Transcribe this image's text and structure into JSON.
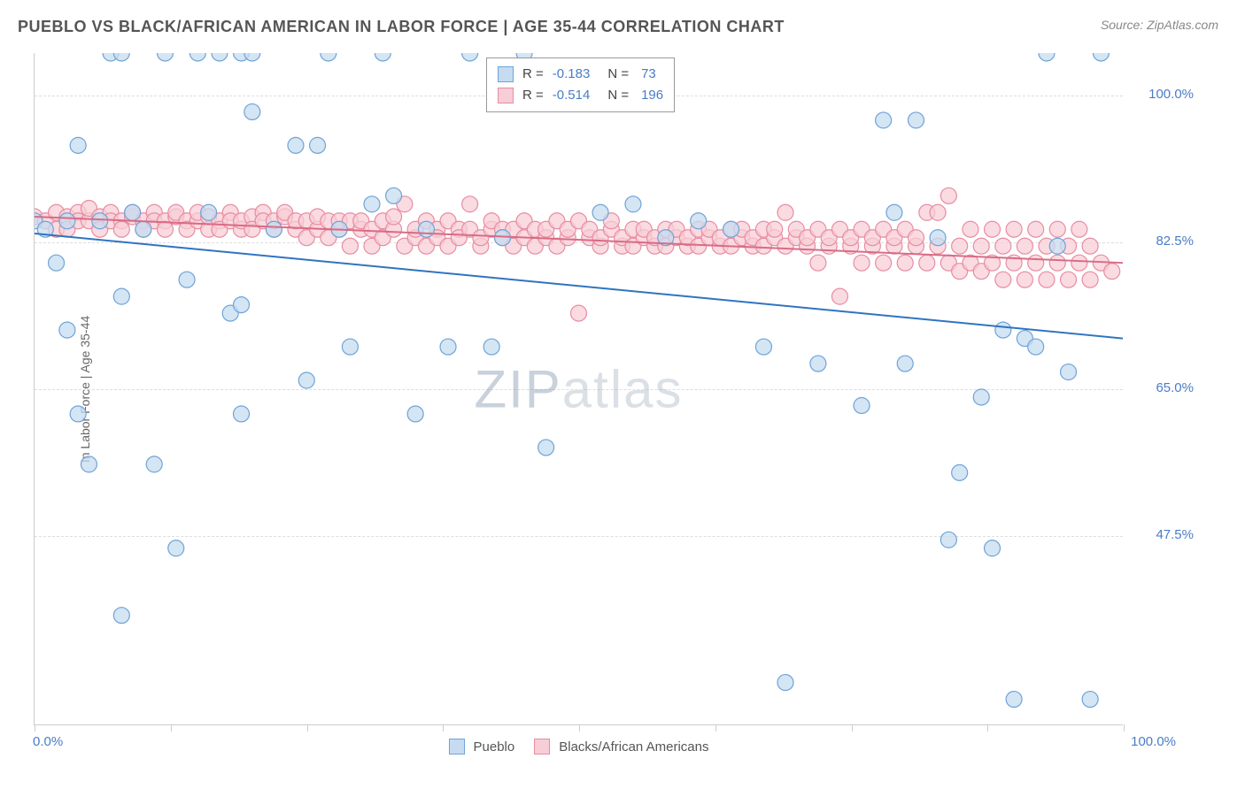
{
  "header": {
    "title": "PUEBLO VS BLACK/AFRICAN AMERICAN IN LABOR FORCE | AGE 35-44 CORRELATION CHART",
    "source": "Source: ZipAtlas.com"
  },
  "chart": {
    "type": "scatter",
    "y_label": "In Labor Force | Age 35-44",
    "xlim": [
      0,
      100
    ],
    "ylim": [
      25,
      105
    ],
    "background_color": "#ffffff",
    "grid_color": "#dddddd",
    "axis_color": "#cccccc",
    "y_ticks": [
      {
        "value": 100.0,
        "label": "100.0%"
      },
      {
        "value": 82.5,
        "label": "82.5%"
      },
      {
        "value": 65.0,
        "label": "65.0%"
      },
      {
        "value": 47.5,
        "label": "47.5%"
      }
    ],
    "x_ticks": [
      0,
      12.5,
      25,
      37.5,
      50,
      62.5,
      75,
      87.5,
      100
    ],
    "x_labels": [
      {
        "value": 0,
        "label": "0.0%"
      },
      {
        "value": 100,
        "label": "100.0%"
      }
    ],
    "label_color": "#4a7cc7",
    "label_fontsize": 15,
    "series": [
      {
        "name": "Pueblo",
        "color": "#6fa3d8",
        "fill": "#c5dcf0",
        "swatch_fill": "#c5dcf0",
        "swatch_border": "#6fa3d8",
        "marker_radius": 9,
        "marker_opacity": 0.75,
        "R": "-0.183",
        "N": "73",
        "regression": {
          "x1": 0,
          "y1": 83.5,
          "x2": 100,
          "y2": 71.0,
          "color": "#2f74c0",
          "width": 2
        },
        "points": [
          [
            0,
            85
          ],
          [
            3,
            85
          ],
          [
            1,
            84
          ],
          [
            2,
            80
          ],
          [
            3,
            72
          ],
          [
            4,
            94
          ],
          [
            4,
            62
          ],
          [
            5,
            56
          ],
          [
            6,
            85
          ],
          [
            7,
            105
          ],
          [
            8,
            105
          ],
          [
            8,
            38
          ],
          [
            8,
            76
          ],
          [
            9,
            86
          ],
          [
            10,
            84
          ],
          [
            11,
            56
          ],
          [
            12,
            105
          ],
          [
            13,
            46
          ],
          [
            14,
            78
          ],
          [
            15,
            105
          ],
          [
            16,
            86
          ],
          [
            17,
            105
          ],
          [
            18,
            74
          ],
          [
            19,
            105
          ],
          [
            19,
            75
          ],
          [
            19,
            62
          ],
          [
            20,
            105
          ],
          [
            20,
            98
          ],
          [
            22,
            84
          ],
          [
            24,
            94
          ],
          [
            25,
            66
          ],
          [
            26,
            94
          ],
          [
            27,
            105
          ],
          [
            28,
            84
          ],
          [
            29,
            70
          ],
          [
            31,
            87
          ],
          [
            32,
            105
          ],
          [
            33,
            88
          ],
          [
            35,
            62
          ],
          [
            36,
            84
          ],
          [
            38,
            70
          ],
          [
            40,
            105
          ],
          [
            42,
            70
          ],
          [
            43,
            83
          ],
          [
            45,
            105
          ],
          [
            47,
            58
          ],
          [
            52,
            86
          ],
          [
            55,
            87
          ],
          [
            58,
            83
          ],
          [
            61,
            85
          ],
          [
            64,
            84
          ],
          [
            67,
            70
          ],
          [
            69,
            30
          ],
          [
            72,
            68
          ],
          [
            76,
            63
          ],
          [
            78,
            97
          ],
          [
            79,
            86
          ],
          [
            80,
            68
          ],
          [
            81,
            97
          ],
          [
            83,
            83
          ],
          [
            84,
            47
          ],
          [
            85,
            55
          ],
          [
            87,
            64
          ],
          [
            88,
            46
          ],
          [
            89,
            72
          ],
          [
            90,
            28
          ],
          [
            91,
            71
          ],
          [
            92,
            70
          ],
          [
            93,
            105
          ],
          [
            94,
            82
          ],
          [
            95,
            67
          ],
          [
            97,
            28
          ],
          [
            98,
            105
          ]
        ]
      },
      {
        "name": "Blacks/African Americans",
        "color": "#e88ca0",
        "fill": "#f7cdd6",
        "swatch_fill": "#f7cdd6",
        "swatch_border": "#e88ca0",
        "marker_radius": 9,
        "marker_opacity": 0.72,
        "R": "-0.514",
        "N": "196",
        "regression": {
          "x1": 0,
          "y1": 85.5,
          "x2": 100,
          "y2": 80.0,
          "color": "#d96b84",
          "width": 2
        },
        "points": [
          [
            0,
            85.5
          ],
          [
            1,
            85
          ],
          [
            2,
            86
          ],
          [
            2,
            84
          ],
          [
            3,
            85.5
          ],
          [
            3,
            84
          ],
          [
            4,
            86
          ],
          [
            4,
            85
          ],
          [
            5,
            85
          ],
          [
            5,
            86.5
          ],
          [
            6,
            85.5
          ],
          [
            6,
            84
          ],
          [
            7,
            86
          ],
          [
            7,
            85
          ],
          [
            8,
            85
          ],
          [
            8,
            84
          ],
          [
            9,
            85.5
          ],
          [
            9,
            86
          ],
          [
            10,
            85
          ],
          [
            10,
            84
          ],
          [
            11,
            86
          ],
          [
            11,
            85
          ],
          [
            12,
            85
          ],
          [
            12,
            84
          ],
          [
            13,
            85.5
          ],
          [
            13,
            86
          ],
          [
            14,
            85
          ],
          [
            14,
            84
          ],
          [
            15,
            85
          ],
          [
            15,
            86
          ],
          [
            16,
            84
          ],
          [
            16,
            85.5
          ],
          [
            17,
            85
          ],
          [
            17,
            84
          ],
          [
            18,
            86
          ],
          [
            18,
            85
          ],
          [
            19,
            84
          ],
          [
            19,
            85
          ],
          [
            20,
            85.5
          ],
          [
            20,
            84
          ],
          [
            21,
            86
          ],
          [
            21,
            85
          ],
          [
            22,
            84
          ],
          [
            22,
            85
          ],
          [
            23,
            85.5
          ],
          [
            23,
            86
          ],
          [
            24,
            84
          ],
          [
            24,
            85
          ],
          [
            25,
            85
          ],
          [
            25,
            83
          ],
          [
            26,
            84
          ],
          [
            26,
            85.5
          ],
          [
            27,
            85
          ],
          [
            27,
            83
          ],
          [
            28,
            84
          ],
          [
            28,
            85
          ],
          [
            29,
            85
          ],
          [
            29,
            82
          ],
          [
            30,
            84
          ],
          [
            30,
            85
          ],
          [
            31,
            82
          ],
          [
            31,
            84
          ],
          [
            32,
            85
          ],
          [
            32,
            83
          ],
          [
            33,
            84
          ],
          [
            33,
            85.5
          ],
          [
            34,
            87
          ],
          [
            34,
            82
          ],
          [
            35,
            83
          ],
          [
            35,
            84
          ],
          [
            36,
            85
          ],
          [
            36,
            82
          ],
          [
            37,
            84
          ],
          [
            37,
            83
          ],
          [
            38,
            85
          ],
          [
            38,
            82
          ],
          [
            39,
            84
          ],
          [
            39,
            83
          ],
          [
            40,
            87
          ],
          [
            40,
            84
          ],
          [
            41,
            82
          ],
          [
            41,
            83
          ],
          [
            42,
            84
          ],
          [
            42,
            85
          ],
          [
            43,
            84
          ],
          [
            43,
            83
          ],
          [
            44,
            82
          ],
          [
            44,
            84
          ],
          [
            45,
            85
          ],
          [
            45,
            83
          ],
          [
            46,
            84
          ],
          [
            46,
            82
          ],
          [
            47,
            83
          ],
          [
            47,
            84
          ],
          [
            48,
            85
          ],
          [
            48,
            82
          ],
          [
            49,
            83
          ],
          [
            49,
            84
          ],
          [
            50,
            85
          ],
          [
            50,
            74
          ],
          [
            51,
            83
          ],
          [
            51,
            84
          ],
          [
            52,
            82
          ],
          [
            52,
            83
          ],
          [
            53,
            84
          ],
          [
            53,
            85
          ],
          [
            54,
            82
          ],
          [
            54,
            83
          ],
          [
            55,
            84
          ],
          [
            55,
            82
          ],
          [
            56,
            83
          ],
          [
            56,
            84
          ],
          [
            57,
            82
          ],
          [
            57,
            83
          ],
          [
            58,
            84
          ],
          [
            58,
            82
          ],
          [
            59,
            83
          ],
          [
            59,
            84
          ],
          [
            60,
            82
          ],
          [
            60,
            83
          ],
          [
            61,
            84
          ],
          [
            61,
            82
          ],
          [
            62,
            83
          ],
          [
            62,
            84
          ],
          [
            63,
            82
          ],
          [
            63,
            83
          ],
          [
            64,
            84
          ],
          [
            64,
            82
          ],
          [
            65,
            83
          ],
          [
            65,
            84
          ],
          [
            66,
            82
          ],
          [
            66,
            83
          ],
          [
            67,
            84
          ],
          [
            67,
            82
          ],
          [
            68,
            83
          ],
          [
            68,
            84
          ],
          [
            69,
            86
          ],
          [
            69,
            82
          ],
          [
            70,
            83
          ],
          [
            70,
            84
          ],
          [
            71,
            82
          ],
          [
            71,
            83
          ],
          [
            72,
            84
          ],
          [
            72,
            80
          ],
          [
            73,
            82
          ],
          [
            73,
            83
          ],
          [
            74,
            84
          ],
          [
            74,
            76
          ],
          [
            75,
            82
          ],
          [
            75,
            83
          ],
          [
            76,
            84
          ],
          [
            76,
            80
          ],
          [
            77,
            82
          ],
          [
            77,
            83
          ],
          [
            78,
            84
          ],
          [
            78,
            80
          ],
          [
            79,
            82
          ],
          [
            79,
            83
          ],
          [
            80,
            84
          ],
          [
            80,
            80
          ],
          [
            81,
            82
          ],
          [
            81,
            83
          ],
          [
            82,
            86
          ],
          [
            82,
            80
          ],
          [
            83,
            82
          ],
          [
            83,
            86
          ],
          [
            84,
            88
          ],
          [
            84,
            80
          ],
          [
            85,
            82
          ],
          [
            85,
            79
          ],
          [
            86,
            84
          ],
          [
            86,
            80
          ],
          [
            87,
            82
          ],
          [
            87,
            79
          ],
          [
            88,
            84
          ],
          [
            88,
            80
          ],
          [
            89,
            82
          ],
          [
            89,
            78
          ],
          [
            90,
            84
          ],
          [
            90,
            80
          ],
          [
            91,
            82
          ],
          [
            91,
            78
          ],
          [
            92,
            84
          ],
          [
            92,
            80
          ],
          [
            93,
            82
          ],
          [
            93,
            78
          ],
          [
            94,
            84
          ],
          [
            94,
            80
          ],
          [
            95,
            82
          ],
          [
            95,
            78
          ],
          [
            96,
            84
          ],
          [
            96,
            80
          ],
          [
            97,
            82
          ],
          [
            97,
            78
          ],
          [
            98,
            80
          ],
          [
            99,
            79
          ]
        ]
      }
    ],
    "legend_top": {
      "rows": [
        {
          "swatch": 0,
          "R_label": "R =",
          "R": "-0.183",
          "N_label": "N =",
          "N": "73"
        },
        {
          "swatch": 1,
          "R_label": "R =",
          "R": "-0.514",
          "N_label": "N =",
          "N": "196"
        }
      ]
    },
    "watermark": {
      "zip": "ZIP",
      "atlas": "atlas"
    }
  }
}
